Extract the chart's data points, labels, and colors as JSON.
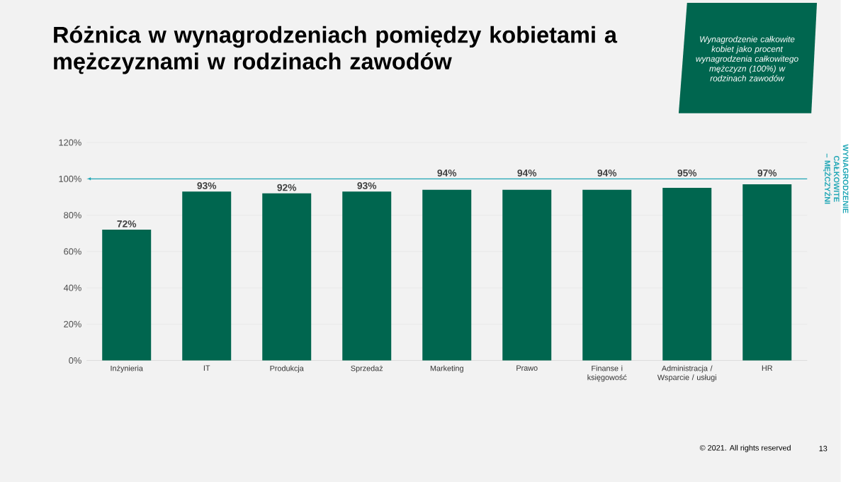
{
  "chart_data": {
    "type": "bar",
    "title": "Różnica w wynagrodzeniach pomiędzy kobietami a mężczyznami w rodzinach zawodów",
    "categories": [
      "Inżynieria",
      "IT",
      "Produkcja",
      "Sprzedaż",
      "Marketing",
      "Prawo",
      "Finanse i księgowość",
      "Administracja / Wsparcie / usługi",
      "HR"
    ],
    "values": [
      72,
      93,
      92,
      93,
      94,
      94,
      94,
      95,
      97
    ],
    "value_labels": [
      "72%",
      "93%",
      "92%",
      "93%",
      "94%",
      "94%",
      "94%",
      "95%",
      "97%"
    ],
    "color": "#00664f",
    "ylim": [
      0,
      120
    ],
    "yticks": [
      {
        "value": 0,
        "label": "0%"
      },
      {
        "value": 20,
        "label": "20%"
      },
      {
        "value": 40,
        "label": "40%"
      },
      {
        "value": 60,
        "label": "60%"
      },
      {
        "value": 80,
        "label": "80%"
      },
      {
        "value": 100,
        "label": "100%"
      },
      {
        "value": 120,
        "label": "120%"
      }
    ],
    "grid": "y",
    "ref_lines": [
      {
        "axis": "y",
        "value": 100,
        "label": "WYNAGRODZENIE CAŁKOWITE – MĘŻCZYŹNI",
        "color": "#1fa6b5"
      }
    ],
    "annotations": [
      "Wynagrodzenie całkowite kobiet jako procent wynagrodzenia całkowitego mężczyzn (100%) w rodzinach zawodów",
      "© 2021. All rights reserved",
      "13"
    ]
  }
}
